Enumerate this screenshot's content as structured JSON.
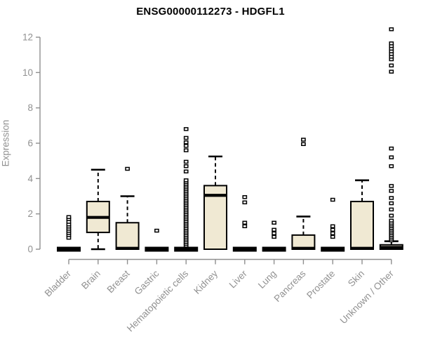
{
  "chart_data": {
    "type": "boxplot",
    "title": "ENSG00000112273 - HDGFL1",
    "ylabel": "Expression",
    "xlabel": "",
    "ylim": [
      0,
      12
    ],
    "yticks": [
      0,
      2,
      4,
      6,
      8,
      10,
      12
    ],
    "grid": false,
    "legend": false,
    "box_fill": "#f0e9d3",
    "box_stroke": "#000000",
    "axis_color": "#8f8f8f",
    "text_color": "#919191",
    "categories": [
      "Bladder",
      "Brain",
      "Breast",
      "Gastric",
      "Hematopoietic cells",
      "Kidney",
      "Liver",
      "Lung",
      "Pancreas",
      "Prostate",
      "Skin",
      "Unknown / Other"
    ],
    "series": [
      {
        "name": "Bladder",
        "low": 0,
        "q1": 0,
        "median": 0,
        "q3": 0,
        "high": 0,
        "outliers": [
          0.65,
          0.8,
          0.92,
          1.04,
          1.16,
          1.28,
          1.4,
          1.55,
          1.7,
          1.82
        ]
      },
      {
        "name": "Brain",
        "low": 0,
        "q1": 0.95,
        "median": 1.8,
        "q3": 2.7,
        "high": 4.5,
        "outliers": []
      },
      {
        "name": "Breast",
        "low": 0,
        "q1": 0,
        "median": 0.05,
        "q3": 1.5,
        "high": 3.0,
        "outliers": [
          4.55
        ]
      },
      {
        "name": "Gastric",
        "low": 0,
        "q1": 0,
        "median": 0,
        "q3": 0,
        "high": 0,
        "outliers": [
          1.05
        ]
      },
      {
        "name": "Hematopoietic cells",
        "low": 0,
        "q1": 0,
        "median": 0,
        "q3": 0,
        "high": 0,
        "outliers": [
          0.2,
          0.3,
          0.4,
          0.5,
          0.6,
          0.7,
          0.8,
          0.9,
          1.0,
          1.1,
          1.2,
          1.3,
          1.4,
          1.5,
          1.6,
          1.7,
          1.8,
          1.9,
          2.0,
          2.1,
          2.2,
          2.3,
          2.4,
          2.5,
          2.6,
          2.7,
          2.8,
          2.9,
          3.0,
          3.1,
          3.2,
          3.3,
          3.4,
          3.5,
          3.6,
          3.7,
          3.8,
          3.9,
          4.4,
          4.7,
          4.95,
          5.6,
          5.85,
          6.05,
          6.3,
          6.8
        ]
      },
      {
        "name": "Kidney",
        "low": 0,
        "q1": 0,
        "median": 3.05,
        "q3": 3.6,
        "high": 5.25,
        "outliers": []
      },
      {
        "name": "Liver",
        "low": 0,
        "q1": 0,
        "median": 0,
        "q3": 0,
        "high": 0,
        "outliers": [
          1.3,
          1.5,
          2.65,
          2.95
        ]
      },
      {
        "name": "Lung",
        "low": 0,
        "q1": 0,
        "median": 0,
        "q3": 0,
        "high": 0,
        "outliers": [
          0.7,
          0.9,
          1.1,
          1.5
        ]
      },
      {
        "name": "Pancreas",
        "low": 0,
        "q1": 0,
        "median": 0.05,
        "q3": 0.8,
        "high": 1.85,
        "outliers": [
          5.95,
          6.2
        ]
      },
      {
        "name": "Prostate",
        "low": 0,
        "q1": 0,
        "median": 0,
        "q3": 0,
        "high": 0,
        "outliers": [
          0.7,
          0.9,
          1.1,
          1.3,
          2.8
        ]
      },
      {
        "name": "Skin",
        "low": 0,
        "q1": 0,
        "median": 0.05,
        "q3": 2.7,
        "high": 3.9,
        "outliers": []
      },
      {
        "name": "Unknown / Other",
        "low": 0,
        "q1": 0,
        "median": 0.1,
        "q3": 0.25,
        "high": 0.45,
        "outliers": [
          0.5,
          0.6,
          0.7,
          0.8,
          0.9,
          1.0,
          1.1,
          1.2,
          1.3,
          1.4,
          1.5,
          1.62,
          1.9,
          2.25,
          2.6,
          2.9,
          3.3,
          3.58,
          4.7,
          5.2,
          5.7,
          10.05,
          10.4,
          10.75,
          10.9,
          11.05,
          11.2,
          11.35,
          11.5,
          11.65,
          12.45
        ]
      }
    ]
  }
}
